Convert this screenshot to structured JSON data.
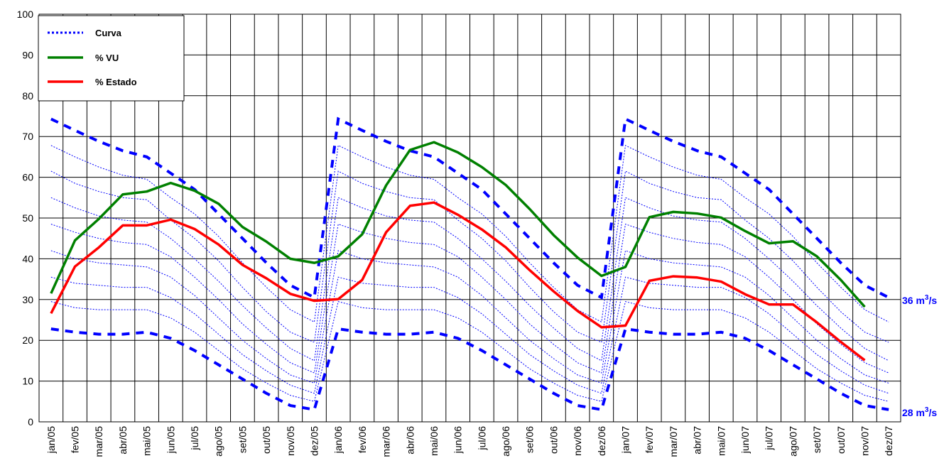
{
  "chart_data": {
    "type": "line",
    "title": "",
    "xlabel": "",
    "ylabel": "",
    "ylim": [
      0,
      100
    ],
    "yticks": [
      0,
      10,
      20,
      30,
      40,
      50,
      60,
      70,
      80,
      90,
      100
    ],
    "grid": true,
    "legend_position": "top-left",
    "categories": [
      "jan/05",
      "fev/05",
      "mar/05",
      "abr/05",
      "mai/05",
      "jun/05",
      "jul/05",
      "ago/05",
      "set/05",
      "out/05",
      "nov/05",
      "dez/05",
      "jan/06",
      "fev/06",
      "mar/06",
      "abr/06",
      "mai/06",
      "jun/06",
      "jul/06",
      "ago/06",
      "set/06",
      "out/06",
      "nov/06",
      "dez/06",
      "jan/07",
      "fev/07",
      "mar/07",
      "abr/07",
      "mai/07",
      "jun/07",
      "jul/07",
      "ago/07",
      "set/07",
      "out/07",
      "nov/07",
      "dez/07"
    ],
    "legend": [
      {
        "label": "Curva",
        "color": "#0000ff",
        "style": "dotted"
      },
      {
        "label": "% VU",
        "color": "#008000",
        "style": "solid"
      },
      {
        "label": "% Estado",
        "color": "#ff0000",
        "style": "solid"
      }
    ],
    "series": [
      {
        "name": "% VU",
        "color": "#008000",
        "values": [
          31.5,
          44.5,
          49.8,
          55.8,
          56.5,
          58.6,
          56.7,
          53.5,
          47.8,
          44.2,
          40.0,
          39.0,
          40.6,
          46.0,
          58.0,
          66.7,
          68.6,
          66.1,
          62.5,
          58.1,
          52.2,
          45.8,
          40.3,
          35.8,
          38.0,
          50.2,
          51.5,
          51.1,
          50.1,
          46.8,
          43.8,
          44.3,
          40.6,
          34.8,
          28.2,
          null
        ]
      },
      {
        "name": "% Estado",
        "color": "#ff0000",
        "values": [
          26.6,
          38.1,
          42.8,
          48.2,
          48.2,
          49.6,
          47.3,
          43.5,
          38.5,
          35.2,
          31.4,
          29.7,
          30.1,
          34.8,
          46.5,
          53.0,
          53.8,
          50.8,
          47.2,
          42.8,
          37.2,
          32.0,
          27.2,
          23.2,
          23.6,
          34.6,
          35.7,
          35.4,
          34.4,
          31.3,
          28.8,
          28.8,
          24.4,
          19.6,
          15.1,
          null
        ]
      }
    ],
    "curves": [
      {
        "name": "36 m³/s",
        "color": "#0000ff",
        "style": "thick-dash",
        "values": [
          74.3,
          71.5,
          68.8,
          66.5,
          65.0,
          61.0,
          57.0,
          51.0,
          45.0,
          39.0,
          33.5,
          30.5,
          74.3,
          71.5,
          68.8,
          66.5,
          65.0,
          61.0,
          57.0,
          51.0,
          45.0,
          39.0,
          33.5,
          30.5,
          74.3,
          71.5,
          68.8,
          66.5,
          65.0,
          61.0,
          57.0,
          51.0,
          45.0,
          39.0,
          33.5,
          30.5
        ]
      },
      {
        "name": "",
        "color": "#0000ff",
        "style": "dotted",
        "values": [
          67.8,
          65.0,
          62.5,
          60.5,
          59.5,
          55.0,
          51.0,
          45.5,
          39.0,
          33.0,
          27.5,
          24.5,
          67.8,
          65.0,
          62.5,
          60.5,
          59.5,
          55.0,
          51.0,
          45.5,
          39.0,
          33.0,
          27.5,
          24.5,
          67.8,
          65.0,
          62.5,
          60.5,
          59.5,
          55.0,
          51.0,
          45.5,
          39.0,
          33.0,
          27.5,
          24.5
        ]
      },
      {
        "name": "",
        "color": "#0000ff",
        "style": "dotted",
        "values": [
          61.5,
          58.5,
          56.5,
          55.0,
          54.5,
          49.5,
          45.0,
          39.5,
          33.0,
          27.0,
          22.0,
          19.5,
          61.5,
          58.5,
          56.5,
          55.0,
          54.5,
          49.5,
          45.0,
          39.5,
          33.0,
          27.0,
          22.0,
          19.5,
          61.5,
          58.5,
          56.5,
          55.0,
          54.5,
          49.5,
          45.0,
          39.5,
          33.0,
          27.0,
          22.0,
          19.5
        ]
      },
      {
        "name": "",
        "color": "#0000ff",
        "style": "dotted",
        "values": [
          55.0,
          52.5,
          50.5,
          49.5,
          49.0,
          45.0,
          40.0,
          34.5,
          28.5,
          23.0,
          18.0,
          15.0,
          55.0,
          52.5,
          50.5,
          49.5,
          49.0,
          45.0,
          40.0,
          34.5,
          28.5,
          23.0,
          18.0,
          15.0,
          55.0,
          52.5,
          50.5,
          49.5,
          49.0,
          45.0,
          40.0,
          34.5,
          28.5,
          23.0,
          18.0,
          15.0
        ]
      },
      {
        "name": "",
        "color": "#0000ff",
        "style": "dotted",
        "values": [
          48.5,
          46.5,
          45.0,
          44.0,
          43.5,
          40.5,
          35.5,
          30.0,
          24.0,
          19.0,
          14.5,
          12.0,
          48.5,
          46.5,
          45.0,
          44.0,
          43.5,
          40.5,
          35.5,
          30.0,
          24.0,
          19.0,
          14.5,
          12.0,
          48.5,
          46.5,
          45.0,
          44.0,
          43.5,
          40.5,
          35.5,
          30.0,
          24.0,
          19.0,
          14.5,
          12.0
        ]
      },
      {
        "name": "",
        "color": "#0000ff",
        "style": "dotted",
        "values": [
          42.0,
          40.0,
          39.0,
          38.5,
          38.0,
          35.5,
          31.0,
          25.5,
          20.0,
          15.5,
          11.5,
          9.5,
          42.0,
          40.0,
          39.0,
          38.5,
          38.0,
          35.5,
          31.0,
          25.5,
          20.0,
          15.5,
          11.5,
          9.5,
          42.0,
          40.0,
          39.0,
          38.5,
          38.0,
          35.5,
          31.0,
          25.5,
          20.0,
          15.5,
          11.5,
          9.5
        ]
      },
      {
        "name": "",
        "color": "#0000ff",
        "style": "dotted",
        "values": [
          35.5,
          34.0,
          33.5,
          33.0,
          33.0,
          30.5,
          26.5,
          21.5,
          16.5,
          12.5,
          9.0,
          7.0,
          35.5,
          34.0,
          33.5,
          33.0,
          33.0,
          30.5,
          26.5,
          21.5,
          16.5,
          12.5,
          9.0,
          7.0,
          35.5,
          34.0,
          33.5,
          33.0,
          33.0,
          30.5,
          26.5,
          21.5,
          16.5,
          12.5,
          9.0,
          7.0
        ]
      },
      {
        "name": "",
        "color": "#0000ff",
        "style": "dotted",
        "values": [
          29.5,
          28.0,
          27.5,
          27.5,
          27.5,
          25.5,
          22.0,
          17.5,
          13.0,
          9.5,
          6.5,
          5.0,
          29.5,
          28.0,
          27.5,
          27.5,
          27.5,
          25.5,
          22.0,
          17.5,
          13.0,
          9.5,
          6.5,
          5.0,
          29.5,
          28.0,
          27.5,
          27.5,
          27.5,
          25.5,
          22.0,
          17.5,
          13.0,
          9.5,
          6.5,
          5.0
        ]
      },
      {
        "name": "28 m³/s",
        "color": "#0000ff",
        "style": "thick-dash",
        "values": [
          22.8,
          22.0,
          21.5,
          21.5,
          22.0,
          20.5,
          17.5,
          14.0,
          10.5,
          7.0,
          4.0,
          3.0,
          22.8,
          22.0,
          21.5,
          21.5,
          22.0,
          20.5,
          17.5,
          14.0,
          10.5,
          7.0,
          4.0,
          3.0,
          22.8,
          22.0,
          21.5,
          21.5,
          22.0,
          20.5,
          17.5,
          14.0,
          10.5,
          7.0,
          4.0,
          3.0
        ]
      }
    ],
    "right_labels": {
      "upper": {
        "base": "36 m",
        "sup": "3",
        "suffix": "/s"
      },
      "lower": {
        "base": "28 m",
        "sup": "3",
        "suffix": "/s"
      }
    }
  }
}
